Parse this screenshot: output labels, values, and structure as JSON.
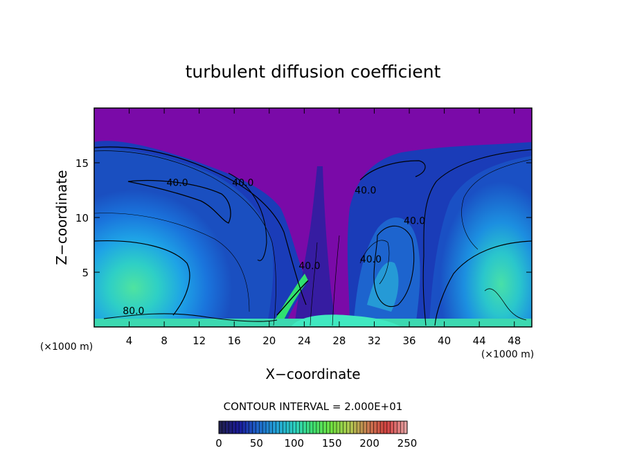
{
  "chart_data": {
    "type": "heatmap",
    "title": "turbulent diffusion coefficient",
    "xlabel": "X−coordinate",
    "ylabel": "Z−coordinate",
    "x_unit_left": "(×1000 m)",
    "x_unit_right": "(×1000 m)",
    "xlim": [
      0,
      50
    ],
    "ylim": [
      0,
      20
    ],
    "x_ticks": [
      4,
      8,
      12,
      16,
      20,
      24,
      28,
      32,
      36,
      40,
      44,
      48
    ],
    "y_ticks": [
      5,
      10,
      15
    ],
    "contour_labels": [
      {
        "text": "40.0",
        "x": 9.5,
        "y": 13.2
      },
      {
        "text": "40.0",
        "x": 17.0,
        "y": 13.2
      },
      {
        "text": "40.0",
        "x": 31.0,
        "y": 12.5
      },
      {
        "text": "40.0",
        "x": 36.6,
        "y": 9.7
      },
      {
        "text": "40.0",
        "x": 31.6,
        "y": 6.2
      },
      {
        "text": "40.0",
        "x": 24.6,
        "y": 5.6
      },
      {
        "text": "80.0",
        "x": 4.5,
        "y": 1.5
      }
    ],
    "contour_interval_text": "CONTOUR INTERVAL = 2.000E+01",
    "colorbar": {
      "min": 0,
      "max": 250,
      "tick_values": [
        0,
        50,
        100,
        150,
        200,
        250
      ],
      "stops": [
        "#202050",
        "#1a1a9a",
        "#1e64c8",
        "#22a0d6",
        "#2cd0c0",
        "#40e070",
        "#70e040",
        "#b0c850",
        "#c87850",
        "#d24040",
        "#e6a0a0"
      ]
    }
  }
}
